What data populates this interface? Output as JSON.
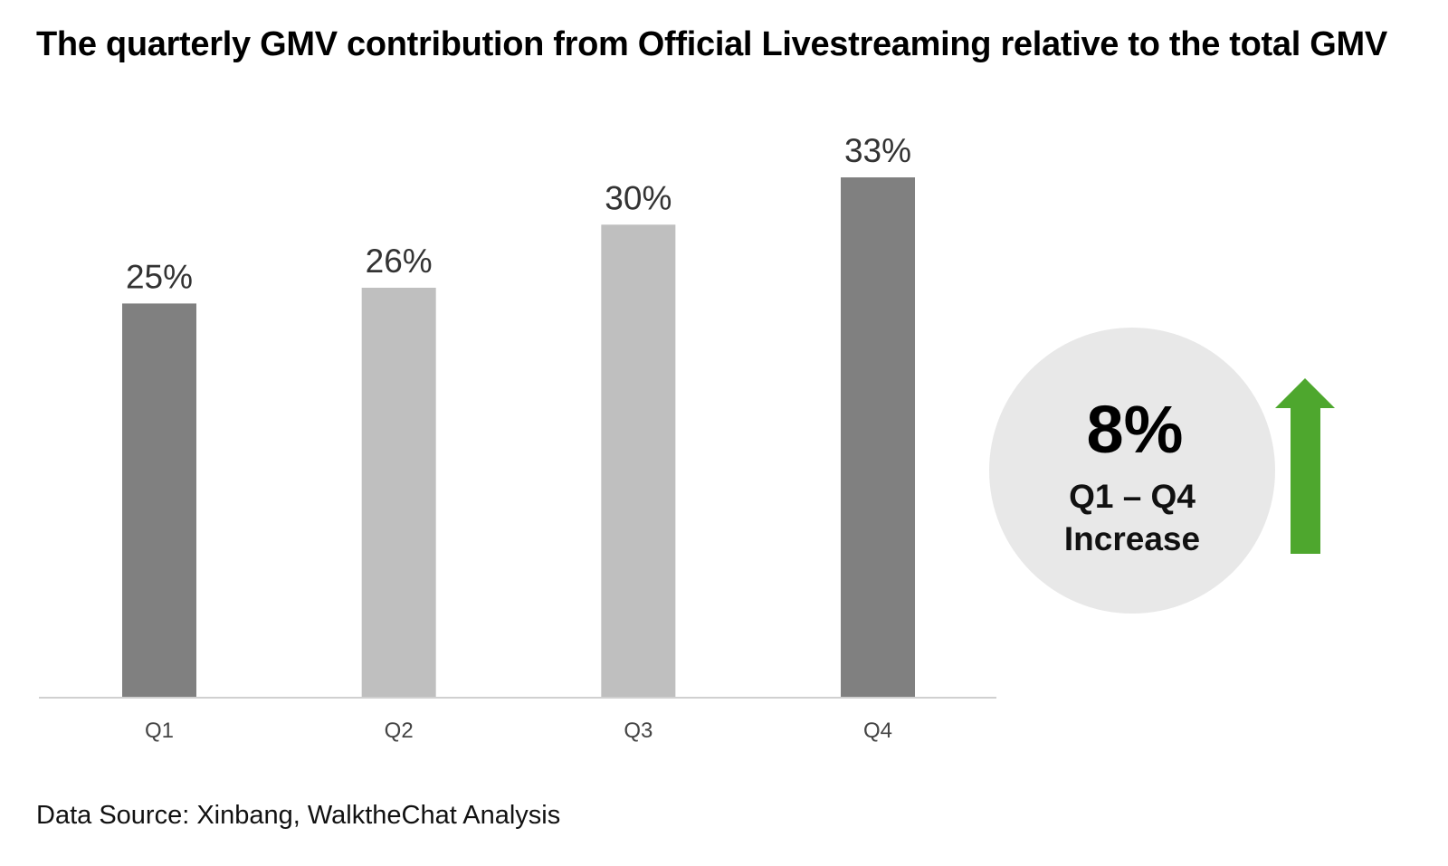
{
  "title": "The quarterly GMV contribution from Official Livestreaming relative to the total GMV",
  "source": "Data Source: Xinbang, WalktheChat Analysis",
  "chart_data": {
    "type": "bar",
    "categories": [
      "Q1",
      "Q2",
      "Q3",
      "Q4"
    ],
    "values": [
      25,
      26,
      30,
      33
    ],
    "value_labels": [
      "25%",
      "26%",
      "30%",
      "33%"
    ],
    "bar_colors": [
      "#808080",
      "#bfbfbf",
      "#bfbfbf",
      "#808080"
    ],
    "ylim": [
      0,
      33
    ],
    "grid": false,
    "legend": "none"
  },
  "callout": {
    "value": "8%",
    "line1": "Q1 – Q4",
    "line2": "Increase",
    "circle_color": "#e8e8e8",
    "arrow_color": "#4ea72e",
    "arrow_icon": "arrow-up-icon"
  },
  "colors": {
    "axis": "#d0d0d0"
  }
}
